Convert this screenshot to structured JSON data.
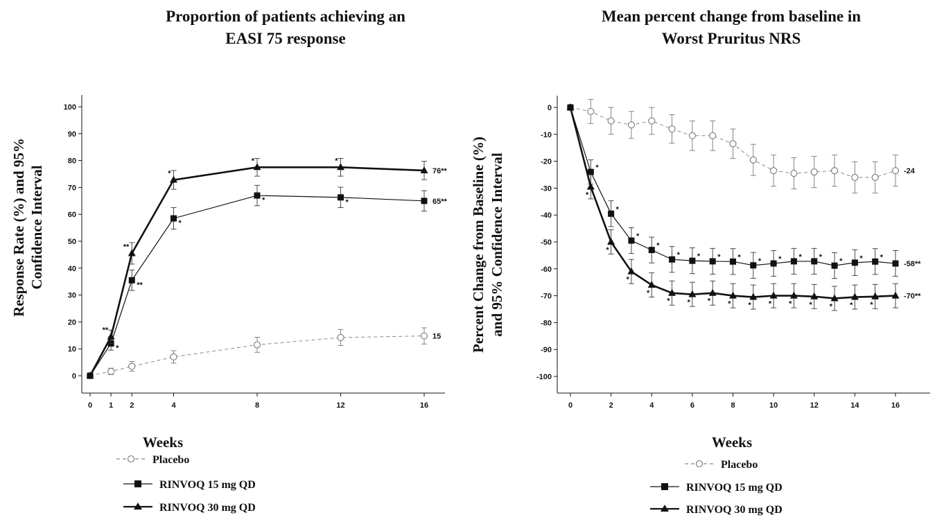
{
  "chart_data": [
    {
      "type": "line",
      "title": [
        "Proportion of patients achieving an",
        "EASI 75 response"
      ],
      "ylabel": [
        "Response Rate (%) and 95%",
        "Confidence Interval"
      ],
      "xlabel": "Weeks",
      "x_ticks": [
        0,
        1,
        2,
        4,
        8,
        12,
        16
      ],
      "y_ticks": [
        0,
        10,
        20,
        30,
        40,
        50,
        60,
        70,
        80,
        90,
        100
      ],
      "xlim": [
        0,
        17.6
      ],
      "ylim": [
        -2,
        105
      ],
      "grid": false,
      "legend_placement": "bottom-center",
      "series": [
        {
          "name": "Placebo",
          "marker": "open-circle",
          "style": "dashed",
          "color": "#888888",
          "x": [
            0,
            1,
            2,
            4,
            8,
            12,
            16
          ],
          "y": [
            0,
            1.6,
            3.5,
            7,
            11.5,
            14.2,
            14.8
          ],
          "err": [
            0,
            1.2,
            1.8,
            2.3,
            2.8,
            3,
            3
          ],
          "star_labels": [
            "",
            "",
            "",
            "",
            "",
            "",
            ""
          ],
          "end_label": "15"
        },
        {
          "name": "RINVOQ 15 mg QD",
          "marker": "square",
          "style": "solid-thin",
          "color": "#111111",
          "x": [
            0,
            1,
            2,
            4,
            8,
            12,
            16
          ],
          "y": [
            0,
            12,
            35.5,
            58.5,
            67,
            66.3,
            65
          ],
          "err": [
            0,
            2.5,
            3.8,
            4,
            3.8,
            3.8,
            3.8
          ],
          "star_labels": [
            "",
            "*",
            "**",
            "*",
            "*",
            "*",
            ""
          ],
          "end_label": "65**"
        },
        {
          "name": "RINVOQ 30 mg QD",
          "marker": "triangle",
          "style": "solid-thick",
          "color": "#111111",
          "x": [
            0,
            1,
            2,
            4,
            8,
            12,
            16
          ],
          "y": [
            0,
            14.5,
            45.5,
            72.8,
            77.5,
            77.5,
            76.3
          ],
          "err": [
            0,
            2.5,
            4,
            3.5,
            3.3,
            3.3,
            3.4
          ],
          "star_labels": [
            "",
            "**",
            "**",
            "*",
            "*",
            "*",
            ""
          ],
          "end_label": "76**"
        }
      ]
    },
    {
      "type": "line",
      "title": [
        "Mean percent change from baseline in",
        "Worst Pruritus NRS"
      ],
      "ylabel": [
        "Percent Change from Baseline (%)",
        "and 95% Confidence Interval"
      ],
      "xlabel": "Weeks",
      "x_ticks": [
        0,
        2,
        4,
        6,
        8,
        10,
        12,
        14,
        16
      ],
      "y_ticks": [
        0,
        -10,
        -20,
        -30,
        -40,
        -50,
        -60,
        -70,
        -80,
        -90,
        -100
      ],
      "xlim": [
        0,
        17.6
      ],
      "ylim": [
        -104,
        4
      ],
      "grid": false,
      "legend_placement": "bottom-center",
      "series": [
        {
          "name": "Placebo",
          "marker": "open-circle",
          "style": "dashed",
          "color": "#888888",
          "x": [
            0,
            1,
            2,
            3,
            4,
            5,
            6,
            7,
            8,
            9,
            10,
            11,
            12,
            13,
            14,
            15,
            16
          ],
          "y": [
            0,
            -1.5,
            -5,
            -6.5,
            -5,
            -8,
            -10.5,
            -10.5,
            -13.5,
            -19.5,
            -23.5,
            -24.5,
            -24,
            -23.5,
            -26,
            -26,
            -23.5
          ],
          "err": [
            0,
            4.5,
            5,
            5,
            5,
            5.3,
            5.5,
            5.5,
            5.5,
            5.8,
            5.8,
            5.8,
            5.8,
            5.8,
            5.8,
            5.8,
            5.8
          ],
          "star_labels": [
            "",
            "",
            "",
            "",
            "",
            "",
            "",
            "",
            "",
            "",
            "",
            "",
            "",
            "",
            "",
            "",
            ""
          ],
          "end_label": "-24"
        },
        {
          "name": "RINVOQ 15 mg QD",
          "marker": "square",
          "style": "solid-thin",
          "color": "#111111",
          "x": [
            0,
            1,
            2,
            3,
            4,
            5,
            6,
            7,
            8,
            9,
            10,
            11,
            12,
            13,
            14,
            15,
            16
          ],
          "y": [
            0,
            -24,
            -39.5,
            -49.5,
            -53,
            -56.5,
            -57,
            -57.2,
            -57.3,
            -58.7,
            -58,
            -57.2,
            -57.2,
            -58.8,
            -57.7,
            -57.3,
            -58
          ],
          "err": [
            0,
            4.5,
            4.8,
            4.8,
            4.8,
            4.8,
            4.8,
            4.8,
            4.8,
            4.8,
            4.8,
            4.8,
            4.8,
            4.8,
            4.8,
            4.8,
            4.8
          ],
          "star_labels": [
            "",
            "*",
            "*",
            "*",
            "*",
            "*",
            "*",
            "*",
            "*",
            "*",
            "*",
            "*",
            "*",
            "*",
            "*",
            "*",
            ""
          ],
          "end_label": "-58**"
        },
        {
          "name": "RINVOQ 30 mg QD",
          "marker": "triangle",
          "style": "solid-thick",
          "color": "#111111",
          "x": [
            0,
            1,
            2,
            3,
            4,
            5,
            6,
            7,
            8,
            9,
            10,
            11,
            12,
            13,
            14,
            15,
            16
          ],
          "y": [
            0,
            -29.5,
            -50,
            -61,
            -66,
            -69,
            -69.5,
            -69,
            -70,
            -70.5,
            -70,
            -70,
            -70.3,
            -71,
            -70.5,
            -70.3,
            -70
          ],
          "err": [
            0,
            4.5,
            4.5,
            4.5,
            4.5,
            4.5,
            4.5,
            4.5,
            4.5,
            4.5,
            4.5,
            4.5,
            4.5,
            4.5,
            4.5,
            4.5,
            4.5
          ],
          "star_labels": [
            "",
            "*",
            "*",
            "*",
            "*",
            "*",
            "*",
            "*",
            "*",
            "*",
            "*",
            "*",
            "*",
            "*",
            "*",
            "*",
            ""
          ],
          "end_label": "-70**"
        }
      ]
    }
  ]
}
